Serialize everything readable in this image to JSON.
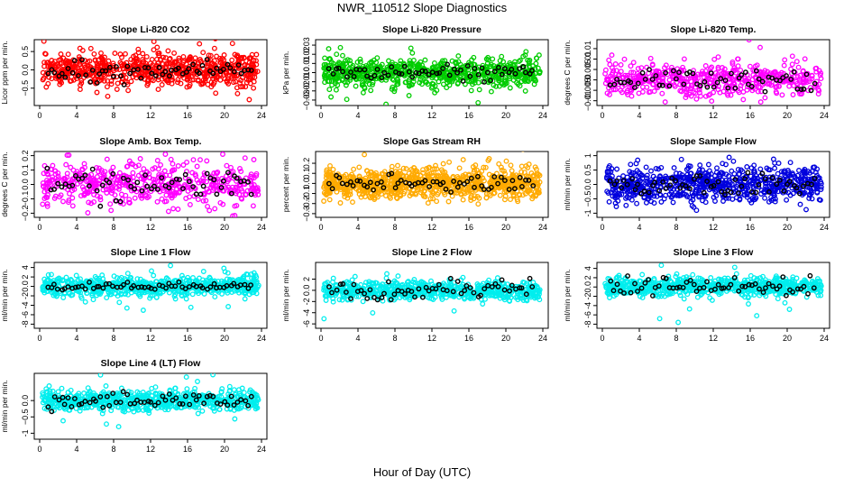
{
  "title": "NWR_110512  Slope Diagnostics",
  "xlabel": "Hour of Day (UTC)",
  "chart_data": [
    {
      "type": "scatter",
      "title": "Slope Li-820 CO2",
      "ylabel": "Licor ppm per min.",
      "xlim": [
        0,
        24
      ],
      "ylim": [
        -0.9,
        0.75
      ],
      "xticks": [
        0,
        4,
        8,
        12,
        16,
        20,
        24
      ],
      "yticks": [
        -0.5,
        0.0,
        0.5
      ],
      "color": "#ff0000",
      "spread": 0.22,
      "ref_spread": 0.12,
      "n": 700
    },
    {
      "type": "scatter",
      "title": "Slope Li-820 Pressure",
      "ylabel": "kPa per min.",
      "xlim": [
        0,
        24
      ],
      "ylim": [
        -0.033,
        0.033
      ],
      "xticks": [
        0,
        4,
        8,
        12,
        16,
        20,
        24
      ],
      "yticks": [
        -0.03,
        -0.02,
        -0.01,
        0.0,
        0.01,
        0.02,
        0.03
      ],
      "color": "#00cc00",
      "spread": 0.008,
      "ref_spread": 0.004,
      "n": 700
    },
    {
      "type": "scatter",
      "title": "Slope Li-820 Temp.",
      "ylabel": "degrees C per min.",
      "xlim": [
        0,
        24
      ],
      "ylim": [
        -0.011,
        0.018
      ],
      "xticks": [
        0,
        4,
        8,
        12,
        16,
        20,
        24
      ],
      "yticks": [
        -0.01,
        -0.005,
        0.0,
        0.005,
        0.01,
        0.015
      ],
      "color": "#ff00ff",
      "spread": 0.004,
      "ref_spread": 0.003,
      "n": 500
    },
    {
      "type": "scatter",
      "title": "Slope Amb. Box Temp.",
      "ylabel": "degrees C per min.",
      "xlim": [
        0,
        24
      ],
      "ylim": [
        -0.21,
        0.21
      ],
      "xticks": [
        0,
        4,
        8,
        12,
        16,
        20,
        24
      ],
      "yticks": [
        -0.2,
        -0.1,
        0.0,
        0.1,
        0.2
      ],
      "color": "#ff00ff",
      "spread": 0.07,
      "ref_spread": 0.05,
      "n": 500
    },
    {
      "type": "scatter",
      "title": "Slope Gas Stream RH",
      "ylabel": "percent per min.",
      "xlim": [
        0,
        24
      ],
      "ylim": [
        -0.31,
        0.29
      ],
      "xticks": [
        0,
        4,
        8,
        12,
        16,
        20,
        24
      ],
      "yticks": [
        -0.3,
        -0.2,
        -0.1,
        0.0,
        0.1,
        0.2
      ],
      "color": "#ffaa00",
      "spread": 0.07,
      "ref_spread": 0.05,
      "n": 900
    },
    {
      "type": "scatter",
      "title": "Slope Sample Flow",
      "ylabel": "ml/min per min.",
      "xlim": [
        0,
        24
      ],
      "ylim": [
        -1.05,
        1.05
      ],
      "xticks": [
        0,
        4,
        8,
        12,
        16,
        20,
        24
      ],
      "yticks": [
        -1.0,
        -0.5,
        0.0,
        0.5,
        1.0
      ],
      "color": "#0000dd",
      "spread": 0.3,
      "ref_spread": 0.2,
      "n": 700
    },
    {
      "type": "scatter",
      "title": "Slope Line 1 Flow",
      "ylabel": "ml/min per min.",
      "xlim": [
        0,
        24
      ],
      "ylim": [
        -8.3,
        4.5
      ],
      "xticks": [
        0,
        4,
        8,
        12,
        16,
        20,
        24
      ],
      "yticks": [
        -8,
        -6,
        -4,
        -2,
        0,
        2,
        4
      ],
      "color": "#00eeee",
      "spread": 1.0,
      "ref_spread": 0.4,
      "n": 700
    },
    {
      "type": "scatter",
      "title": "Slope Line 2 Flow",
      "ylabel": "ml/min per min.",
      "xlim": [
        0,
        24
      ],
      "ylim": [
        -6.3,
        4.5
      ],
      "xticks": [
        0,
        4,
        8,
        12,
        16,
        20,
        24
      ],
      "yticks": [
        -6,
        -4,
        -2,
        0,
        2
      ],
      "color": "#00eeee",
      "spread": 0.8,
      "ref_spread": 0.9,
      "n": 700
    },
    {
      "type": "scatter",
      "title": "Slope Line 3 Flow",
      "ylabel": "ml/min per min.",
      "xlim": [
        0,
        24
      ],
      "ylim": [
        -8.3,
        4.7
      ],
      "xticks": [
        0,
        4,
        8,
        12,
        16,
        20,
        24
      ],
      "yticks": [
        -8,
        -6,
        -4,
        -2,
        0,
        2,
        4
      ],
      "color": "#00eeee",
      "spread": 1.0,
      "ref_spread": 1.0,
      "n": 700
    },
    {
      "type": "scatter",
      "title": "Slope Line 4 (LT) Flow",
      "ylabel": "ml/min per min.",
      "xlim": [
        0,
        24
      ],
      "ylim": [
        -1.1,
        0.75
      ],
      "xticks": [
        0,
        4,
        8,
        12,
        16,
        20,
        24
      ],
      "yticks": [
        -1.0,
        -0.5,
        0.0
      ],
      "color": "#00eeee",
      "spread": 0.15,
      "ref_spread": 0.12,
      "n": 700
    }
  ]
}
